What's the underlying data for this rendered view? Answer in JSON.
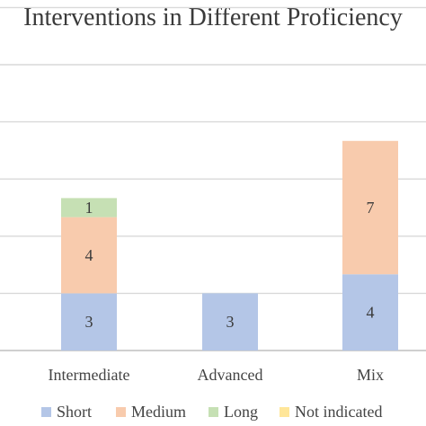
{
  "chart_data": {
    "type": "bar",
    "stacked": true,
    "title": "Interventions in Different Proficiency",
    "categories": [
      "Intermediate",
      "Advanced",
      "Mix"
    ],
    "series": [
      {
        "name": "Short",
        "values": [
          3,
          3,
          4
        ],
        "color": "#b4c6e7"
      },
      {
        "name": "Medium",
        "values": [
          4,
          0,
          7
        ],
        "color": "#f8cbad"
      },
      {
        "name": "Long",
        "values": [
          1,
          0,
          0
        ],
        "color": "#c6e0b4"
      },
      {
        "name": "Not indicated",
        "values": [
          0,
          0,
          0
        ],
        "color": "#ffe699"
      }
    ],
    "ylim": [
      0,
      21
    ],
    "grid": true,
    "legend_position": "bottom",
    "gridline_color": "#d9d9d9",
    "axis_color": "#bfbfbf"
  }
}
